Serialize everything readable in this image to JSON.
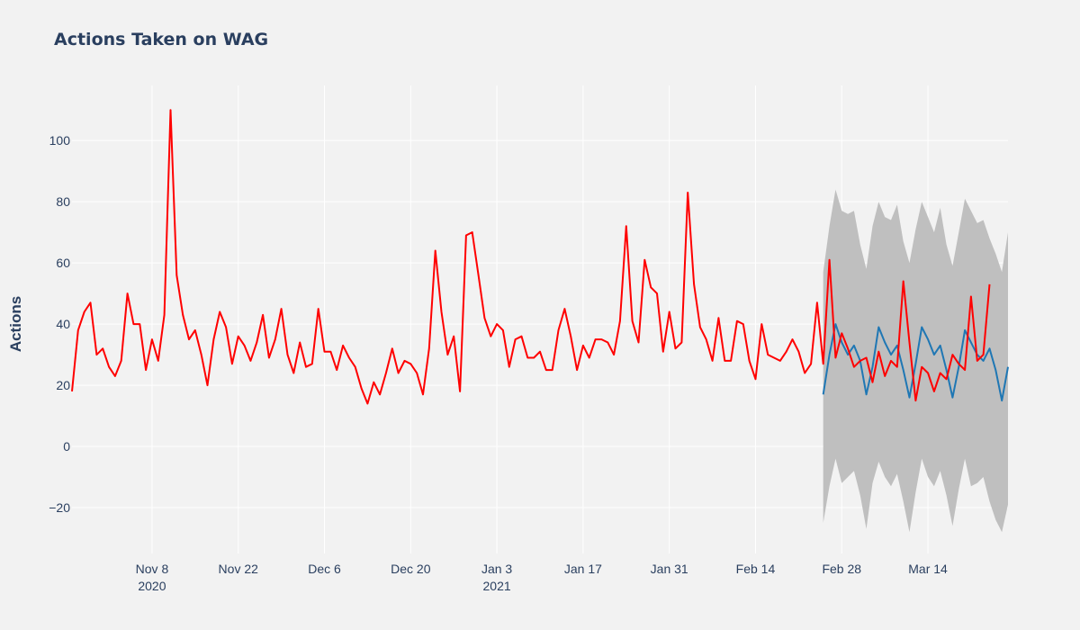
{
  "chart_data": {
    "type": "line",
    "title": "Actions Taken on WAG",
    "xlabel": "",
    "ylabel": "Actions",
    "x_start_date": "2020-10-26",
    "xlim": [
      "2020-10-26",
      "2021-03-27"
    ],
    "ylim": [
      -35,
      118
    ],
    "grid": true,
    "legend": "none",
    "x_ticks": [
      {
        "date": "2020-11-08",
        "label": "Nov 8",
        "sublabel": "2020"
      },
      {
        "date": "2020-11-22",
        "label": "Nov 22",
        "sublabel": ""
      },
      {
        "date": "2020-12-06",
        "label": "Dec 6",
        "sublabel": ""
      },
      {
        "date": "2020-12-20",
        "label": "Dec 20",
        "sublabel": ""
      },
      {
        "date": "2021-01-03",
        "label": "Jan 3",
        "sublabel": "2021"
      },
      {
        "date": "2021-01-17",
        "label": "Jan 17",
        "sublabel": ""
      },
      {
        "date": "2021-01-31",
        "label": "Jan 31",
        "sublabel": ""
      },
      {
        "date": "2021-02-14",
        "label": "Feb 14",
        "sublabel": ""
      },
      {
        "date": "2021-02-28",
        "label": "Feb 28",
        "sublabel": ""
      },
      {
        "date": "2021-03-14",
        "label": "Mar 14",
        "sublabel": ""
      }
    ],
    "y_ticks": [
      {
        "value": -20,
        "label": "−20"
      },
      {
        "value": 0,
        "label": "0"
      },
      {
        "value": 20,
        "label": "20"
      },
      {
        "value": 40,
        "label": "40"
      },
      {
        "value": 60,
        "label": "60"
      },
      {
        "value": 80,
        "label": "80"
      },
      {
        "value": 100,
        "label": "100"
      }
    ],
    "series": [
      {
        "color": "#ff0000",
        "start_date": "2020-10-26",
        "values": [
          18,
          38,
          44,
          47,
          30,
          32,
          26,
          23,
          28,
          50,
          40,
          40,
          25,
          35,
          28,
          43,
          110,
          56,
          43,
          35,
          38,
          30,
          20,
          35,
          44,
          39,
          27,
          36,
          33,
          28,
          34,
          43,
          29,
          35,
          45,
          30,
          24,
          34,
          26,
          27,
          45,
          31,
          31,
          25,
          33,
          29,
          26,
          19,
          14,
          21,
          17,
          24,
          32,
          24,
          28,
          27,
          24,
          17,
          32,
          64,
          44,
          30,
          36,
          18,
          69,
          70,
          56,
          42,
          36,
          40,
          38,
          26,
          35,
          36,
          29,
          29,
          31,
          25,
          25,
          38,
          45,
          36,
          25,
          33,
          29,
          35,
          35,
          34,
          30,
          41,
          72,
          41,
          34,
          61,
          52,
          50,
          31,
          44,
          32,
          34,
          83,
          53,
          39,
          35,
          28,
          42,
          28,
          28,
          41,
          40,
          28,
          22,
          40,
          30,
          29,
          28,
          31,
          35,
          31,
          24,
          27,
          47,
          27,
          61,
          29,
          37,
          32,
          26,
          28,
          29,
          21,
          31,
          23,
          28,
          26,
          54,
          34,
          15,
          26,
          24,
          18,
          24,
          22,
          30,
          27,
          25,
          49,
          28,
          30,
          53
        ]
      },
      {
        "color": "#1f77b4",
        "start_date": "2021-02-25",
        "values": [
          17,
          30,
          40,
          34,
          30,
          33,
          28,
          17,
          26,
          39,
          34,
          30,
          33,
          25,
          16,
          27,
          39,
          35,
          30,
          33,
          25,
          16,
          26,
          38,
          34,
          30,
          28,
          32,
          25,
          15,
          26
        ]
      }
    ],
    "band": {
      "color": "#bfbfbf",
      "start_date": "2021-02-25",
      "upper": [
        57,
        72,
        84,
        77,
        76,
        77,
        66,
        58,
        72,
        80,
        75,
        74,
        79,
        67,
        60,
        71,
        80,
        75,
        70,
        78,
        66,
        59,
        70,
        81,
        77,
        73,
        74,
        68,
        63,
        57,
        70
      ],
      "lower": [
        -25,
        -13,
        -4,
        -12,
        -10,
        -8,
        -16,
        -27,
        -12,
        -5,
        -10,
        -13,
        -9,
        -18,
        -28,
        -15,
        -4,
        -10,
        -13,
        -8,
        -16,
        -26,
        -14,
        -4,
        -13,
        -12,
        -10,
        -18,
        -24,
        -28,
        -19
      ]
    }
  }
}
